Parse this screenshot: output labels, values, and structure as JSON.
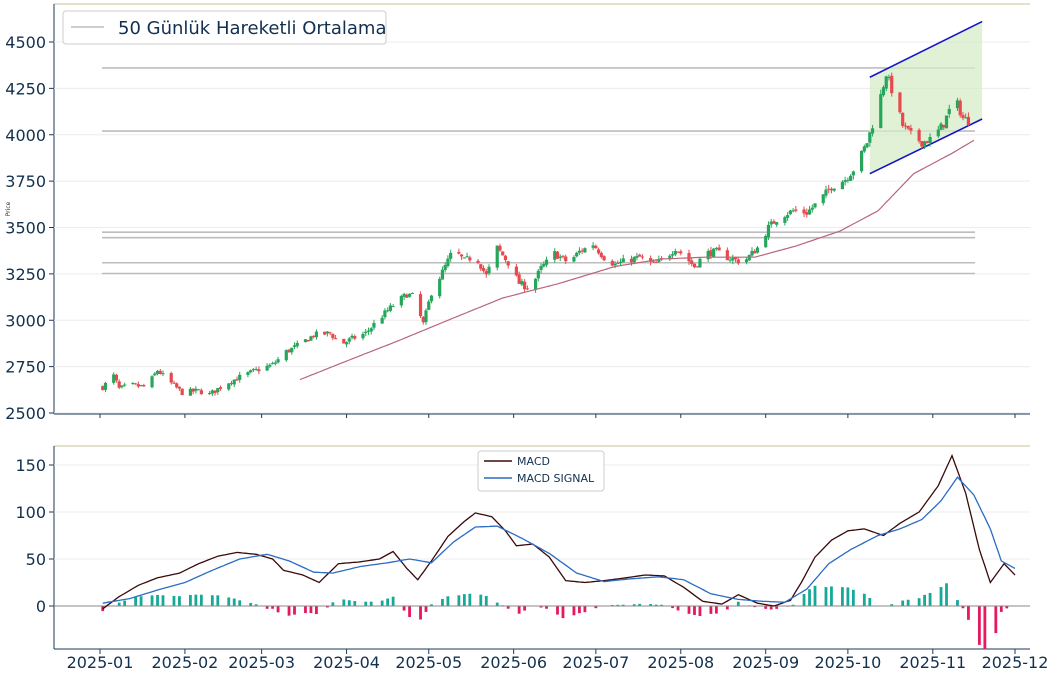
{
  "chart_data": [
    {
      "type": "candlestick",
      "title": "",
      "xlabel": "",
      "ylabel": "Price",
      "ylim": [
        2500,
        4600
      ],
      "yticks": [
        2500,
        2750,
        3000,
        3250,
        3500,
        3750,
        4000,
        4250,
        4500
      ],
      "legend": {
        "placement": "top-left",
        "entries": [
          "50 Günlük Hareketli Ortalama"
        ]
      },
      "up_color": "#26a65b",
      "down_color": "#e8494f",
      "ma_color": "#b8667a",
      "hline_color": "#bdbdbd",
      "channel_color": "#1414c8",
      "channel_fill": "#d5ecc8",
      "horizontal_levels": [
        4360,
        4020,
        3475,
        3445,
        3310,
        3252
      ],
      "channel": {
        "start": "2025-10-09",
        "end": "2025-11-19",
        "upper": [
          4310,
          4610
        ],
        "lower": [
          3790,
          4085
        ]
      },
      "ohlc_control_points": [
        [
          "2025-01-02",
          2640
        ],
        [
          "2025-01-06",
          2700
        ],
        [
          "2025-01-08",
          2630
        ],
        [
          "2025-01-12",
          2650
        ],
        [
          "2025-01-18",
          2640
        ],
        [
          "2025-01-22",
          2730
        ],
        [
          "2025-01-27",
          2660
        ],
        [
          "2025-01-31",
          2610
        ],
        [
          "2025-02-06",
          2620
        ],
        [
          "2025-02-10",
          2600
        ],
        [
          "2025-02-16",
          2660
        ],
        [
          "2025-02-22",
          2700
        ],
        [
          "2025-02-27",
          2730
        ],
        [
          "2025-03-05",
          2760
        ],
        [
          "2025-03-10",
          2830
        ],
        [
          "2025-03-15",
          2870
        ],
        [
          "2025-03-20",
          2920
        ],
        [
          "2025-03-26",
          2930
        ],
        [
          "2025-03-30",
          2870
        ],
        [
          "2025-04-03",
          2900
        ],
        [
          "2025-04-08",
          2930
        ],
        [
          "2025-04-13",
          3010
        ],
        [
          "2025-04-18",
          3080
        ],
        [
          "2025-04-23",
          3140
        ],
        [
          "2025-04-25",
          3130
        ],
        [
          "2025-04-29",
          2980
        ],
        [
          "2025-05-02",
          3150
        ],
        [
          "2025-05-06",
          3260
        ],
        [
          "2025-05-10",
          3380
        ],
        [
          "2025-05-14",
          3320
        ],
        [
          "2025-05-18",
          3350
        ],
        [
          "2025-05-22",
          3240
        ],
        [
          "2025-05-26",
          3390
        ],
        [
          "2025-05-30",
          3310
        ],
        [
          "2025-06-03",
          3200
        ],
        [
          "2025-06-07",
          3170
        ],
        [
          "2025-06-11",
          3280
        ],
        [
          "2025-06-16",
          3360
        ],
        [
          "2025-06-21",
          3310
        ],
        [
          "2025-06-25",
          3370
        ],
        [
          "2025-06-30",
          3410
        ],
        [
          "2025-07-04",
          3340
        ],
        [
          "2025-07-08",
          3300
        ],
        [
          "2025-07-12",
          3320
        ],
        [
          "2025-07-17",
          3340
        ],
        [
          "2025-07-22",
          3300
        ],
        [
          "2025-07-26",
          3330
        ],
        [
          "2025-07-30",
          3390
        ],
        [
          "2025-08-02",
          3350
        ],
        [
          "2025-08-06",
          3290
        ],
        [
          "2025-08-10",
          3360
        ],
        [
          "2025-08-14",
          3370
        ],
        [
          "2025-08-18",
          3340
        ],
        [
          "2025-08-22",
          3320
        ],
        [
          "2025-08-25",
          3330
        ],
        [
          "2025-08-29",
          3390
        ],
        [
          "2025-09-02",
          3500
        ],
        [
          "2025-09-06",
          3560
        ],
        [
          "2025-09-11",
          3590
        ],
        [
          "2025-09-16",
          3580
        ],
        [
          "2025-09-21",
          3650
        ],
        [
          "2025-09-25",
          3720
        ],
        [
          "2025-09-30",
          3760
        ],
        [
          "2025-10-04",
          3830
        ],
        [
          "2025-10-08",
          3960
        ],
        [
          "2025-10-12",
          4150
        ],
        [
          "2025-10-15",
          4330
        ],
        [
          "2025-10-18",
          4200
        ],
        [
          "2025-10-21",
          4050
        ],
        [
          "2025-10-24",
          4000
        ],
        [
          "2025-10-28",
          3960
        ],
        [
          "2025-11-01",
          3980
        ],
        [
          "2025-11-05",
          4060
        ],
        [
          "2025-11-09",
          4200
        ],
        [
          "2025-11-12",
          4090
        ],
        [
          "2025-11-16",
          4060
        ]
      ],
      "ma50_control_points": [
        [
          "2025-03-15",
          2680
        ],
        [
          "2025-04-01",
          2780
        ],
        [
          "2025-04-20",
          2890
        ],
        [
          "2025-05-08",
          3000
        ],
        [
          "2025-05-28",
          3120
        ],
        [
          "2025-06-18",
          3200
        ],
        [
          "2025-07-08",
          3290
        ],
        [
          "2025-07-25",
          3330
        ],
        [
          "2025-08-10",
          3340
        ],
        [
          "2025-08-28",
          3340
        ],
        [
          "2025-09-12",
          3400
        ],
        [
          "2025-09-28",
          3480
        ],
        [
          "2025-10-12",
          3590
        ],
        [
          "2025-10-25",
          3790
        ],
        [
          "2025-11-08",
          3900
        ],
        [
          "2025-11-16",
          3970
        ]
      ]
    },
    {
      "type": "line+bar",
      "title": "",
      "xlabel": "",
      "ylabel": "",
      "ylim": [
        -45,
        170
      ],
      "yticks": [
        0,
        50,
        100,
        150
      ],
      "xticks": [
        "2025-01",
        "2025-02",
        "2025-03",
        "2025-04",
        "2025-05",
        "2025-06",
        "2025-07",
        "2025-08",
        "2025-09",
        "2025-10",
        "2025-11",
        "2025-12"
      ],
      "legend": {
        "placement": "top-center",
        "entries": [
          "MACD",
          "MACD SIGNAL"
        ]
      },
      "series": [
        {
          "name": "MACD",
          "color": "#3a0a0a",
          "points": [
            [
              "2025-01-02",
              -3
            ],
            [
              "2025-01-08",
              10
            ],
            [
              "2025-01-15",
              22
            ],
            [
              "2025-01-22",
              30
            ],
            [
              "2025-01-30",
              35
            ],
            [
              "2025-02-06",
              45
            ],
            [
              "2025-02-13",
              53
            ],
            [
              "2025-02-20",
              57
            ],
            [
              "2025-02-27",
              55
            ],
            [
              "2025-03-05",
              50
            ],
            [
              "2025-03-09",
              38
            ],
            [
              "2025-03-16",
              33
            ],
            [
              "2025-03-22",
              25
            ],
            [
              "2025-03-29",
              45
            ],
            [
              "2025-04-06",
              47
            ],
            [
              "2025-04-13",
              50
            ],
            [
              "2025-04-18",
              58
            ],
            [
              "2025-04-23",
              40
            ],
            [
              "2025-04-27",
              28
            ],
            [
              "2025-05-02",
              48
            ],
            [
              "2025-05-08",
              74
            ],
            [
              "2025-05-14",
              90
            ],
            [
              "2025-05-18",
              99
            ],
            [
              "2025-05-24",
              95
            ],
            [
              "2025-05-29",
              80
            ],
            [
              "2025-06-02",
              64
            ],
            [
              "2025-06-08",
              66
            ],
            [
              "2025-06-14",
              52
            ],
            [
              "2025-06-20",
              27
            ],
            [
              "2025-06-27",
              25
            ],
            [
              "2025-07-04",
              27
            ],
            [
              "2025-07-12",
              30
            ],
            [
              "2025-07-19",
              33
            ],
            [
              "2025-07-26",
              32
            ],
            [
              "2025-08-02",
              20
            ],
            [
              "2025-08-09",
              5
            ],
            [
              "2025-08-16",
              2
            ],
            [
              "2025-08-22",
              12
            ],
            [
              "2025-08-29",
              3
            ],
            [
              "2025-09-04",
              0
            ],
            [
              "2025-09-10",
              6
            ],
            [
              "2025-09-14",
              25
            ],
            [
              "2025-09-19",
              52
            ],
            [
              "2025-09-25",
              70
            ],
            [
              "2025-10-01",
              80
            ],
            [
              "2025-10-07",
              82
            ],
            [
              "2025-10-14",
              75
            ],
            [
              "2025-10-20",
              88
            ],
            [
              "2025-10-27",
              100
            ],
            [
              "2025-11-03",
              128
            ],
            [
              "2025-11-08",
              160
            ],
            [
              "2025-11-13",
              120
            ],
            [
              "2025-11-18",
              60
            ],
            [
              "2025-11-22",
              25
            ],
            [
              "2025-11-27",
              45
            ],
            [
              "2025-12-01",
              33
            ]
          ]
        },
        {
          "name": "MACD SIGNAL",
          "color": "#2b6cc4",
          "points": [
            [
              "2025-01-02",
              3
            ],
            [
              "2025-01-12",
              8
            ],
            [
              "2025-01-22",
              17
            ],
            [
              "2025-02-01",
              25
            ],
            [
              "2025-02-11",
              38
            ],
            [
              "2025-02-21",
              50
            ],
            [
              "2025-03-03",
              55
            ],
            [
              "2025-03-11",
              48
            ],
            [
              "2025-03-20",
              36
            ],
            [
              "2025-03-27",
              35
            ],
            [
              "2025-04-06",
              42
            ],
            [
              "2025-04-16",
              46
            ],
            [
              "2025-04-24",
              50
            ],
            [
              "2025-05-02",
              46
            ],
            [
              "2025-05-10",
              68
            ],
            [
              "2025-05-18",
              84
            ],
            [
              "2025-05-26",
              85
            ],
            [
              "2025-06-04",
              72
            ],
            [
              "2025-06-14",
              56
            ],
            [
              "2025-06-24",
              35
            ],
            [
              "2025-07-04",
              26
            ],
            [
              "2025-07-14",
              29
            ],
            [
              "2025-07-24",
              31
            ],
            [
              "2025-08-02",
              28
            ],
            [
              "2025-08-12",
              13
            ],
            [
              "2025-08-22",
              7
            ],
            [
              "2025-08-31",
              5
            ],
            [
              "2025-09-08",
              4
            ],
            [
              "2025-09-16",
              18
            ],
            [
              "2025-09-24",
              45
            ],
            [
              "2025-10-02",
              60
            ],
            [
              "2025-10-12",
              75
            ],
            [
              "2025-10-20",
              82
            ],
            [
              "2025-10-28",
              92
            ],
            [
              "2025-11-04",
              112
            ],
            [
              "2025-11-10",
              137
            ],
            [
              "2025-11-16",
              118
            ],
            [
              "2025-11-22",
              82
            ],
            [
              "2025-11-26",
              48
            ],
            [
              "2025-12-01",
              40
            ]
          ]
        }
      ],
      "histogram": {
        "name": "MACD histogram",
        "positive_color": "#17a899",
        "negative_color": "#e8185f",
        "note": "computed per bar as MACD minus MACD SIGNAL"
      }
    }
  ]
}
